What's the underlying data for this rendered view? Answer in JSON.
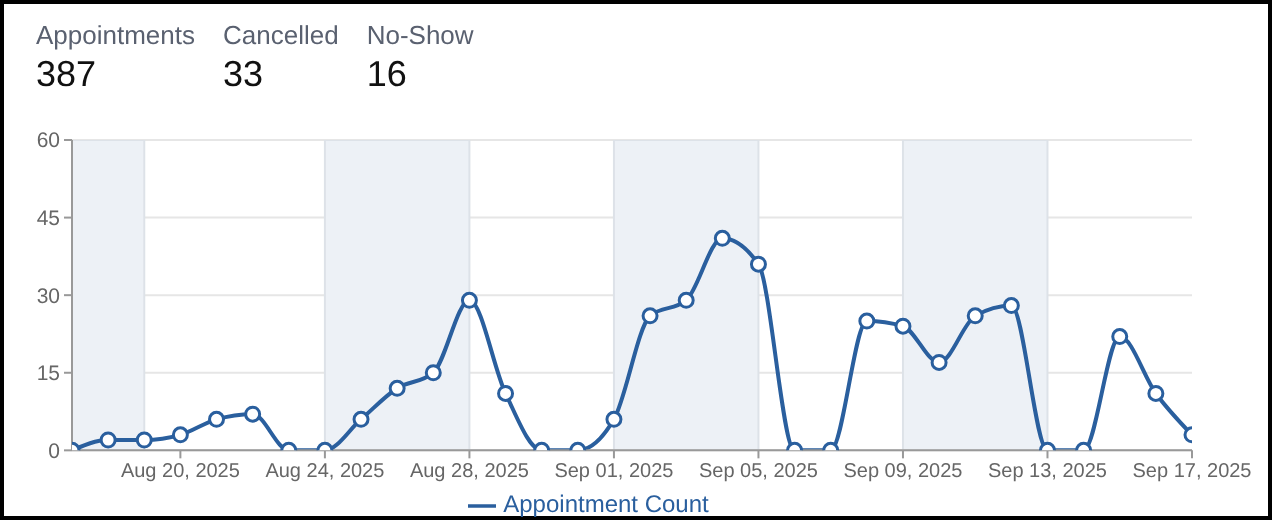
{
  "chart_data": {
    "type": "line",
    "annotations": [
      "Appointments",
      "387",
      "Cancelled",
      "33",
      "No-Show",
      "16"
    ],
    "x": [
      "2025-08-17",
      "2025-08-18",
      "2025-08-19",
      "2025-08-20",
      "2025-08-21",
      "2025-08-22",
      "2025-08-23",
      "2025-08-24",
      "2025-08-25",
      "2025-08-26",
      "2025-08-27",
      "2025-08-28",
      "2025-08-29",
      "2025-08-30",
      "2025-08-31",
      "2025-09-01",
      "2025-09-02",
      "2025-09-03",
      "2025-09-04",
      "2025-09-05",
      "2025-09-06",
      "2025-09-07",
      "2025-09-08",
      "2025-09-09",
      "2025-09-10",
      "2025-09-11",
      "2025-09-12",
      "2025-09-13",
      "2025-09-14",
      "2025-09-15",
      "2025-09-16",
      "2025-09-17"
    ],
    "series": [
      {
        "name": "Appointment Count",
        "color": "#2a5f9e",
        "values": [
          0,
          2,
          2,
          3,
          6,
          7,
          0,
          0,
          6,
          12,
          15,
          29,
          11,
          0,
          0,
          6,
          26,
          29,
          41,
          36,
          0,
          0,
          25,
          24,
          17,
          26,
          28,
          0,
          0,
          22,
          11,
          3
        ]
      }
    ],
    "xlim": [
      "2025-08-17",
      "2025-09-17"
    ],
    "xticks": [
      {
        "value": "2025-08-20",
        "label": "Aug 20, 2025"
      },
      {
        "value": "2025-08-24",
        "label": "Aug 24, 2025"
      },
      {
        "value": "2025-08-28",
        "label": "Aug 28, 2025"
      },
      {
        "value": "2025-09-01",
        "label": "Sep 01, 2025"
      },
      {
        "value": "2025-09-05",
        "label": "Sep 05, 2025"
      },
      {
        "value": "2025-09-09",
        "label": "Sep 09, 2025"
      },
      {
        "value": "2025-09-13",
        "label": "Sep 13, 2025"
      },
      {
        "value": "2025-09-17",
        "label": "Sep 17, 2025"
      }
    ],
    "ylim": [
      0,
      60
    ],
    "yticks": [
      0,
      15,
      30,
      45,
      60
    ],
    "bands": [
      {
        "axis": "x",
        "from": "2025-08-17",
        "to": "2025-08-19",
        "color": "#edf1f6"
      },
      {
        "axis": "x",
        "from": "2025-08-24",
        "to": "2025-08-28",
        "color": "#edf1f6"
      },
      {
        "axis": "x",
        "from": "2025-09-01",
        "to": "2025-09-05",
        "color": "#edf1f6"
      },
      {
        "axis": "x",
        "from": "2025-09-09",
        "to": "2025-09-13",
        "color": "#edf1f6"
      }
    ],
    "grid": "y",
    "legend": "bottom",
    "marker": "circle",
    "line_style": "solid"
  }
}
